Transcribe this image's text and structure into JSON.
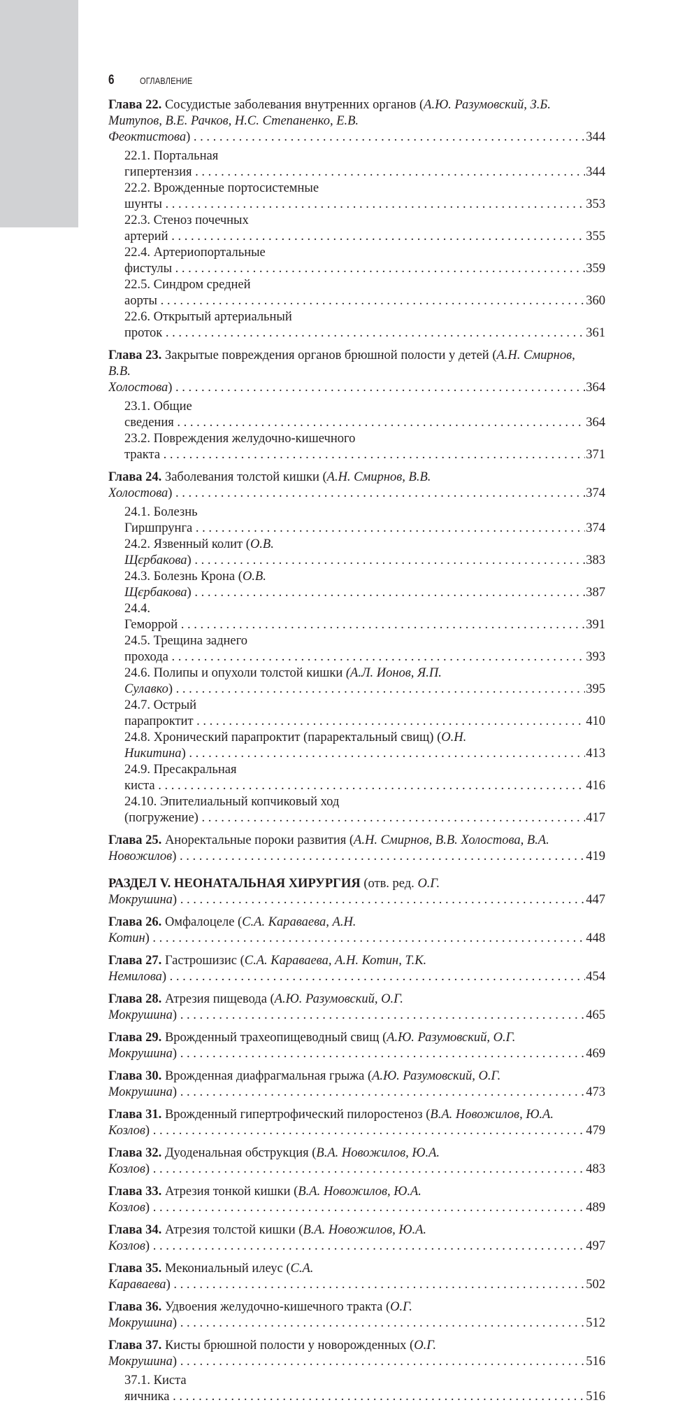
{
  "header": {
    "page_number": "6",
    "running_title": "ОГЛАВЛЕНИЕ"
  },
  "entries": [
    {
      "kind": "chapter",
      "label": "Глава 22.",
      "title": "Сосудистые заболевания внутренних органов (",
      "authors": "А.Ю. Разумовский, З.Б. Митупов, В.Е. Рачков, Н.С. Степаненко, Е.В. Феоктистова",
      "tail": ")",
      "page": "344"
    },
    {
      "kind": "sub",
      "title": "22.1. Портальная гипертензия",
      "page": "344"
    },
    {
      "kind": "sub",
      "title": "22.2. Врожденные портосистемные шунты",
      "page": "353"
    },
    {
      "kind": "sub",
      "title": "22.3. Стеноз почечных артерий",
      "page": "355"
    },
    {
      "kind": "sub",
      "title": "22.4. Артериопортальные фистулы",
      "page": "359"
    },
    {
      "kind": "sub",
      "title": "22.5. Синдром средней аорты",
      "page": "360"
    },
    {
      "kind": "sub",
      "title": "22.6. Открытый артериальный проток",
      "page": "361"
    },
    {
      "kind": "chapter",
      "label": "Глава 23.",
      "title": "Закрытые повреждения органов брюшной полости у детей (",
      "authors": "А.Н. Смирнов, В.В. Холостова",
      "tail": ")",
      "page": "364"
    },
    {
      "kind": "sub",
      "title": "23.1. Общие сведения",
      "page": "364"
    },
    {
      "kind": "sub",
      "title": "23.2. Повреждения желудочно-кишечного тракта",
      "page": "371"
    },
    {
      "kind": "chapter",
      "label": "Глава 24.",
      "title": "Заболевания толстой кишки (",
      "authors": "А.Н. Смирнов, В.В. Холостова",
      "tail": ")",
      "page": "374"
    },
    {
      "kind": "sub",
      "title": "24.1. Болезнь Гиршпрунга",
      "page": "374"
    },
    {
      "kind": "sub",
      "title": "24.2. Язвенный колит (",
      "authors": "О.В. Щєрбакова",
      "tail": ")",
      "page": "383"
    },
    {
      "kind": "sub",
      "title": "24.3. Болезнь Крона (",
      "authors": "О.В. Щєрбакова",
      "tail": ")",
      "page": "387"
    },
    {
      "kind": "sub",
      "title": "24.4. Геморрой",
      "page": "391"
    },
    {
      "kind": "sub",
      "title": "24.5. Трещина заднего прохода",
      "page": "393"
    },
    {
      "kind": "sub",
      "title": "24.6. Полипы и опухоли толстой кишки ",
      "authors": "(А.Л. Ионов, Я.П. Сулавко",
      "tail": ")",
      "page": "395"
    },
    {
      "kind": "sub",
      "title": "24.7. Острый парапроктит",
      "page": "410"
    },
    {
      "kind": "sub",
      "title": "24.8. Хронический парапроктит (параректальный свищ) (",
      "authors": "О.Н. Никитина",
      "tail": ")",
      "page": "413"
    },
    {
      "kind": "sub",
      "title": "24.9. Пресакральная киста",
      "page": "416"
    },
    {
      "kind": "sub",
      "title": "24.10. Эпителиальный копчиковый ход (погружение)",
      "page": "417"
    },
    {
      "kind": "chapter",
      "label": "Глава 25.",
      "title": "Аноректальные пороки развития (",
      "authors": "А.Н. Смирнов, В.В. Холостова, В.А. Новожилов",
      "tail": ")",
      "page": "419"
    },
    {
      "kind": "section",
      "label": "РАЗДЕЛ V. НЕОНАТАЛЬНАЯ ХИРУРГИЯ",
      "title": " (отв. ред. ",
      "authors": "О.Г. Мокрушина",
      "tail": ")",
      "page": "447"
    },
    {
      "kind": "chapter",
      "label": "Глава 26.",
      "title": "Омфалоцеле (",
      "authors": "С.А. Караваева, А.Н. Котин",
      "tail": ")",
      "page": "448"
    },
    {
      "kind": "chapter",
      "label": "Глава 27.",
      "title": "Гастрошизис (",
      "authors": "С.А. Караваева, А.Н. Котин, Т.К. Немилова",
      "tail": ")",
      "page": "454"
    },
    {
      "kind": "chapter",
      "label": "Глава 28.",
      "title": "Атрезия пищевода (",
      "authors": "А.Ю. Разумовский, О.Г. Мокрушина",
      "tail": ")",
      "page": "465"
    },
    {
      "kind": "chapter",
      "label": "Глава 29.",
      "title": "Врожденный трахеопищеводный свищ (",
      "authors": "А.Ю. Разумовский, О.Г. Мокрушина",
      "tail": ")",
      "page": "469"
    },
    {
      "kind": "chapter",
      "label": "Глава 30.",
      "title": "Врожденная диафрагмальная грыжа (",
      "authors": "А.Ю. Разумовский, О.Г. Мокрушина",
      "tail": ")",
      "page": "473"
    },
    {
      "kind": "chapter",
      "label": "Глава 31.",
      "title": "Врожденный гипертрофический пилоростеноз (",
      "authors": "В.А. Новожилов, Ю.А. Козлов",
      "tail": ")",
      "page": "479"
    },
    {
      "kind": "chapter",
      "label": "Глава 32.",
      "title": "Дуоденальная обструкция (",
      "authors": "В.А. Новожилов, Ю.А. Козлов",
      "tail": ")",
      "page": "483"
    },
    {
      "kind": "chapter",
      "label": "Глава 33.",
      "title": "Атрезия тонкой кишки (",
      "authors": "В.А. Новожилов, Ю.А. Козлов",
      "tail": ")",
      "page": "489"
    },
    {
      "kind": "chapter",
      "label": "Глава 34.",
      "title": "Атрезия толстой кишки (",
      "authors": "В.А. Новожилов, Ю.А. Козлов",
      "tail": ")",
      "page": "497"
    },
    {
      "kind": "chapter",
      "label": "Глава 35.",
      "title": "Мекониальный илеус (",
      "authors": "С.А. Караваева",
      "tail": ")",
      "page": "502"
    },
    {
      "kind": "chapter",
      "label": "Глава 36.",
      "title": "Удвоения желудочно-кишечного тракта (",
      "authors": "О.Г. Мокрушина",
      "tail": ")",
      "page": "512"
    },
    {
      "kind": "chapter",
      "label": "Глава 37.",
      "title": "Кисты брюшной полости у новорожденных (",
      "authors": "О.Г. Мокрушина",
      "tail": ")",
      "page": "516"
    },
    {
      "kind": "sub",
      "title": "37.1. Киста яичника",
      "page": "516"
    }
  ]
}
